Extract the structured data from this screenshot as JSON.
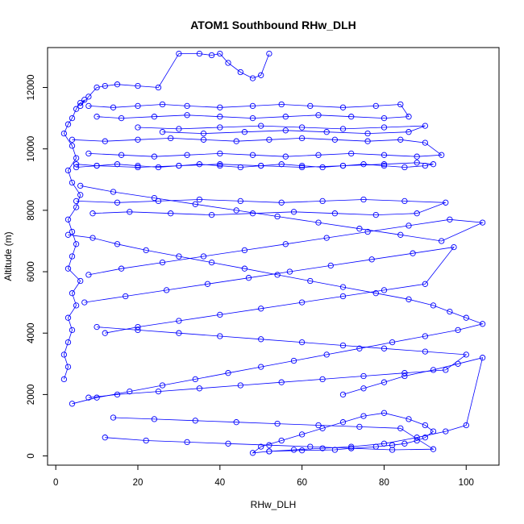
{
  "chart_data": {
    "type": "scatter",
    "title": "ATOM1 Southbound RHw_DLH",
    "xlabel": "RHw_DLH",
    "ylabel": "Altitude (m)",
    "xlim": [
      -2,
      108
    ],
    "ylim": [
      -300,
      13300
    ],
    "xticks": [
      0,
      20,
      40,
      60,
      80,
      100
    ],
    "yticks": [
      0,
      2000,
      4000,
      6000,
      8000,
      10000,
      12000
    ],
    "grid": false,
    "legend": "none",
    "series_color": "#0000ff",
    "marker": "open-circle",
    "connect_points": true,
    "series": [
      {
        "x": [
          2,
          3,
          2,
          3,
          4,
          3,
          5,
          4,
          6,
          3,
          4,
          5,
          4,
          3,
          5,
          6,
          4,
          3,
          5,
          4,
          2,
          3,
          4,
          5,
          6,
          7,
          6,
          8,
          10,
          12,
          15,
          20,
          25,
          30,
          35,
          38,
          40,
          42,
          45,
          48,
          50,
          52
        ],
        "y": [
          2500,
          2900,
          3300,
          3700,
          4100,
          4500,
          4900,
          5300,
          5700,
          6100,
          6500,
          6900,
          7300,
          7700,
          8100,
          8500,
          8900,
          9300,
          9700,
          10100,
          10500,
          10800,
          11000,
          11300,
          11500,
          11600,
          11400,
          11700,
          12000,
          12050,
          12100,
          12050,
          12000,
          13100,
          13100,
          13050,
          13100,
          12800,
          12500,
          12300,
          12400,
          13100
        ]
      },
      {
        "x": [
          52,
          60,
          68,
          72,
          78,
          82,
          85,
          88,
          90,
          92,
          90,
          86,
          80,
          75,
          70,
          65,
          60,
          55,
          50,
          48,
          52,
          58,
          65,
          72,
          80,
          88,
          95,
          100,
          104,
          98,
          92,
          85,
          80,
          75,
          70
        ],
        "y": [
          150,
          180,
          200,
          250,
          300,
          350,
          400,
          500,
          600,
          800,
          1000,
          1200,
          1400,
          1300,
          1100,
          900,
          700,
          500,
          300,
          100,
          150,
          200,
          250,
          300,
          400,
          600,
          800,
          1000,
          3200,
          3000,
          2800,
          2600,
          2400,
          2200,
          2000
        ]
      },
      {
        "x": [
          5,
          10,
          15,
          20,
          25,
          30,
          35,
          40,
          45,
          50,
          55,
          60,
          65,
          70,
          75,
          80,
          85,
          90,
          92,
          88,
          80,
          70,
          60,
          50,
          40,
          30,
          20,
          10,
          5
        ],
        "y": [
          9400,
          9450,
          9500,
          9450,
          9400,
          9450,
          9500,
          9450,
          9400,
          9450,
          9500,
          9450,
          9400,
          9450,
          9500,
          9450,
          9400,
          9450,
          9500,
          9550,
          9500,
          9450,
          9400,
          9450,
          9500,
          9450,
          9400,
          9450,
          9500
        ]
      },
      {
        "x": [
          8,
          14,
          20,
          26,
          32,
          40,
          48,
          55,
          62,
          70,
          78,
          84,
          86,
          80,
          72,
          64,
          56,
          48,
          40,
          32,
          24,
          16,
          10
        ],
        "y": [
          11400,
          11350,
          11400,
          11450,
          11400,
          11350,
          11400,
          11450,
          11400,
          11350,
          11400,
          11450,
          11050,
          11000,
          11050,
          11100,
          11050,
          11000,
          11050,
          11100,
          11050,
          11000,
          11050
        ]
      },
      {
        "x": [
          4,
          12,
          20,
          28,
          36,
          44,
          52,
          60,
          68,
          76,
          84,
          90,
          94,
          88,
          80,
          72,
          64,
          56,
          48,
          40,
          32,
          24,
          16,
          8
        ],
        "y": [
          10300,
          10250,
          10300,
          10350,
          10300,
          10250,
          10300,
          10350,
          10300,
          10250,
          10300,
          10200,
          9800,
          9750,
          9800,
          9850,
          9800,
          9750,
          9800,
          9850,
          9800,
          9750,
          9800,
          9850
        ]
      },
      {
        "x": [
          3,
          9,
          15,
          22,
          30,
          38,
          46,
          54,
          62,
          70,
          78,
          86,
          92,
          96,
          100,
          104,
          98,
          90,
          82,
          74,
          66,
          58,
          50,
          42,
          34,
          26,
          18,
          10,
          4
        ],
        "y": [
          7200,
          7100,
          6900,
          6700,
          6500,
          6300,
          6100,
          5900,
          5700,
          5500,
          5300,
          5100,
          4900,
          4700,
          4500,
          4300,
          4100,
          3900,
          3700,
          3500,
          3300,
          3100,
          2900,
          2700,
          2500,
          2300,
          2100,
          1900,
          1700
        ]
      },
      {
        "x": [
          6,
          14,
          24,
          34,
          44,
          54,
          64,
          74,
          84,
          94,
          104,
          96,
          86,
          76,
          66,
          56,
          46,
          36,
          26,
          16,
          8
        ],
        "y": [
          8800,
          8600,
          8400,
          8200,
          8000,
          7800,
          7600,
          7400,
          7200,
          7000,
          7600,
          7700,
          7500,
          7300,
          7100,
          6900,
          6700,
          6500,
          6300,
          6100,
          5900
        ]
      },
      {
        "x": [
          10,
          20,
          30,
          40,
          50,
          60,
          70,
          80,
          90,
          100,
          95,
          85,
          75,
          65,
          55,
          45,
          35,
          25,
          15,
          8
        ],
        "y": [
          4200,
          4100,
          4000,
          3900,
          3800,
          3700,
          3600,
          3500,
          3400,
          3300,
          2800,
          2700,
          2600,
          2500,
          2400,
          2300,
          2200,
          2100,
          2000,
          1900
        ]
      },
      {
        "x": [
          12,
          22,
          32,
          42,
          52,
          62,
          72,
          82,
          92,
          84,
          74,
          64,
          54,
          44,
          34,
          24,
          14
        ],
        "y": [
          600,
          500,
          450,
          400,
          350,
          300,
          250,
          200,
          220,
          900,
          950,
          1000,
          1050,
          1100,
          1150,
          1200,
          1250
        ]
      },
      {
        "x": [
          7,
          17,
          27,
          37,
          47,
          57,
          67,
          77,
          87,
          97,
          90,
          80,
          70,
          60,
          50,
          40,
          30,
          20,
          12
        ],
        "y": [
          5000,
          5200,
          5400,
          5600,
          5800,
          6000,
          6200,
          6400,
          6600,
          6800,
          5600,
          5400,
          5200,
          5000,
          4800,
          4600,
          4400,
          4200,
          4000
        ]
      },
      {
        "x": [
          5,
          15,
          25,
          35,
          45,
          55,
          65,
          75,
          85,
          95,
          88,
          78,
          68,
          58,
          48,
          38,
          28,
          18,
          9
        ],
        "y": [
          8300,
          8250,
          8300,
          8350,
          8300,
          8250,
          8300,
          8350,
          8300,
          8250,
          7900,
          7850,
          7900,
          7950,
          7900,
          7850,
          7900,
          7950,
          7900
        ]
      },
      {
        "x": [
          20,
          30,
          40,
          50,
          60,
          70,
          80,
          90,
          86,
          76,
          66,
          56,
          46,
          36,
          26
        ],
        "y": [
          10700,
          10650,
          10700,
          10750,
          10700,
          10650,
          10700,
          10750,
          10550,
          10500,
          10550,
          10600,
          10550,
          10500,
          10550
        ]
      }
    ]
  }
}
